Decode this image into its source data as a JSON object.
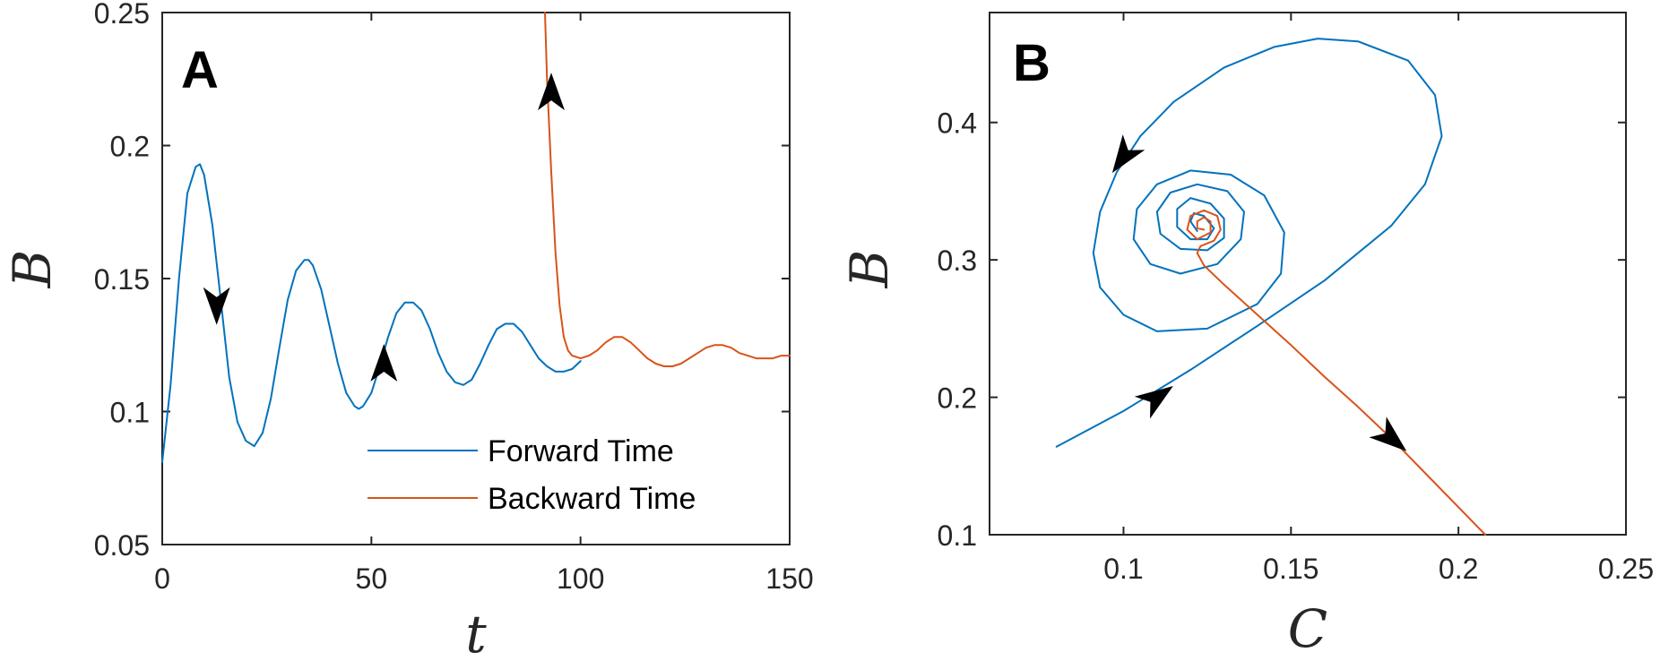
{
  "colors": {
    "forward": "#0072BD",
    "backward": "#D95319",
    "axis": "#262626",
    "arrow": "#000000"
  },
  "chart_data": [
    {
      "type": "line",
      "panel_label": "A",
      "xlabel": "t",
      "ylabel": "B",
      "xlim": [
        0,
        150
      ],
      "ylim": [
        0.05,
        0.25
      ],
      "xticks": [
        0,
        50,
        100,
        150
      ],
      "xtick_labels": [
        "0",
        "50",
        "100",
        "150"
      ],
      "yticks": [
        0.05,
        0.1,
        0.15,
        0.2,
        0.25
      ],
      "ytick_labels": [
        "0.05",
        "0.1",
        "0.15",
        "0.2",
        "0.25"
      ],
      "legend": {
        "position": "bottom-right",
        "entries": [
          "Forward Time",
          "Backward Time"
        ]
      },
      "series": [
        {
          "name": "Forward Time",
          "x": [
            0,
            2,
            4,
            6,
            8,
            9,
            10,
            12,
            14,
            16,
            18,
            20,
            22,
            24,
            26,
            28,
            30,
            32,
            34,
            35,
            36,
            38,
            40,
            42,
            44,
            46,
            47,
            48,
            50,
            52,
            54,
            56,
            58,
            60,
            62,
            64,
            66,
            68,
            70,
            72,
            74,
            76,
            78,
            80,
            82,
            84,
            86,
            88,
            90,
            92,
            94,
            96,
            98,
            100
          ],
          "y": [
            0.081,
            0.11,
            0.15,
            0.182,
            0.192,
            0.193,
            0.189,
            0.17,
            0.142,
            0.113,
            0.096,
            0.089,
            0.087,
            0.092,
            0.105,
            0.124,
            0.142,
            0.153,
            0.157,
            0.157,
            0.155,
            0.146,
            0.132,
            0.118,
            0.107,
            0.102,
            0.101,
            0.102,
            0.107,
            0.117,
            0.128,
            0.137,
            0.141,
            0.141,
            0.138,
            0.131,
            0.122,
            0.115,
            0.111,
            0.11,
            0.112,
            0.118,
            0.125,
            0.131,
            0.133,
            0.133,
            0.13,
            0.125,
            0.12,
            0.117,
            0.115,
            0.115,
            0.116,
            0.119
          ]
        },
        {
          "name": "Backward Time",
          "x": [
            91.5,
            92,
            93,
            94,
            95,
            96,
            97,
            98,
            100,
            102,
            104,
            106,
            108,
            110,
            112,
            114,
            116,
            118,
            120,
            122,
            124,
            126,
            128,
            130,
            132,
            134,
            136,
            138,
            140,
            142,
            144,
            146,
            148,
            150
          ],
          "y": [
            0.25,
            0.225,
            0.19,
            0.16,
            0.14,
            0.128,
            0.123,
            0.121,
            0.12,
            0.121,
            0.123,
            0.126,
            0.128,
            0.128,
            0.126,
            0.123,
            0.12,
            0.118,
            0.117,
            0.117,
            0.118,
            0.12,
            0.122,
            0.124,
            0.125,
            0.125,
            0.124,
            0.122,
            0.121,
            0.12,
            0.12,
            0.12,
            0.121,
            0.121
          ]
        }
      ],
      "arrows": [
        {
          "series": "Forward Time",
          "x": 13,
          "y": 0.14,
          "direction": "down"
        },
        {
          "series": "Forward Time",
          "x": 53,
          "y": 0.118,
          "direction": "up"
        },
        {
          "series": "Backward Time",
          "x": 93,
          "y": 0.22,
          "direction": "up"
        }
      ]
    },
    {
      "type": "line",
      "panel_label": "B",
      "xlabel": "C",
      "ylabel": "B",
      "xlim": [
        0.06,
        0.25
      ],
      "ylim": [
        0.1,
        0.48
      ],
      "xticks": [
        0.1,
        0.15,
        0.2,
        0.25
      ],
      "xtick_labels": [
        "0.1",
        "0.15",
        "0.2",
        "0.25"
      ],
      "yticks": [
        0.1,
        0.2,
        0.3,
        0.4
      ],
      "ytick_labels": [
        "0.1",
        "0.2",
        "0.3",
        "0.4"
      ],
      "spiral_center": [
        0.123,
        0.323
      ],
      "series": [
        {
          "name": "Forward Time",
          "x": [
            0.08,
            0.1,
            0.12,
            0.14,
            0.16,
            0.18,
            0.19,
            0.195,
            0.193,
            0.185,
            0.17,
            0.158,
            0.145,
            0.13,
            0.115,
            0.105,
            0.098,
            0.093,
            0.091,
            0.093,
            0.1,
            0.11,
            0.125,
            0.14,
            0.147,
            0.148,
            0.142,
            0.132,
            0.12,
            0.11,
            0.104,
            0.103,
            0.108,
            0.117,
            0.128,
            0.135,
            0.136,
            0.131,
            0.122,
            0.114,
            0.11,
            0.111,
            0.117,
            0.125,
            0.13,
            0.13,
            0.126,
            0.12,
            0.116,
            0.116,
            0.12,
            0.125,
            0.127,
            0.124,
            0.121,
            0.12,
            0.122
          ],
          "y": [
            0.164,
            0.19,
            0.22,
            0.252,
            0.285,
            0.325,
            0.355,
            0.39,
            0.42,
            0.445,
            0.459,
            0.461,
            0.455,
            0.44,
            0.415,
            0.39,
            0.364,
            0.335,
            0.305,
            0.28,
            0.26,
            0.248,
            0.25,
            0.268,
            0.29,
            0.32,
            0.347,
            0.362,
            0.365,
            0.355,
            0.337,
            0.315,
            0.297,
            0.29,
            0.297,
            0.315,
            0.335,
            0.35,
            0.355,
            0.349,
            0.335,
            0.319,
            0.308,
            0.307,
            0.316,
            0.33,
            0.341,
            0.345,
            0.337,
            0.324,
            0.315,
            0.315,
            0.323,
            0.332,
            0.334,
            0.328,
            0.321
          ]
        },
        {
          "name": "Backward Time",
          "x": [
            0.208,
            0.2,
            0.19,
            0.18,
            0.17,
            0.16,
            0.15,
            0.14,
            0.13,
            0.124,
            0.122,
            0.123,
            0.127,
            0.129,
            0.128,
            0.124,
            0.12,
            0.119,
            0.122,
            0.126,
            0.126,
            0.124,
            0.122,
            0.122,
            0.124
          ],
          "y": [
            0.1,
            0.12,
            0.145,
            0.17,
            0.193,
            0.215,
            0.238,
            0.26,
            0.282,
            0.296,
            0.305,
            0.31,
            0.314,
            0.322,
            0.332,
            0.336,
            0.332,
            0.322,
            0.315,
            0.32,
            0.328,
            0.331,
            0.328,
            0.323,
            0.322
          ]
        }
      ],
      "arrows": [
        {
          "series": "Forward Time",
          "x": 0.11,
          "y": 0.2,
          "direction": "up-right"
        },
        {
          "series": "Forward Time",
          "x": 0.1,
          "y": 0.375,
          "direction": "down-left"
        },
        {
          "series": "Backward Time",
          "x": 0.18,
          "y": 0.17,
          "direction": "down-right"
        }
      ]
    }
  ]
}
